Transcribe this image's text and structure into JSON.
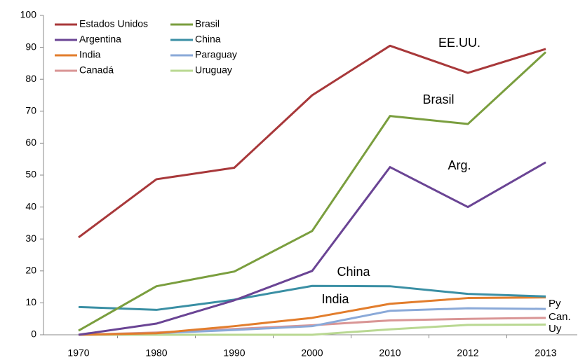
{
  "chart_data": {
    "type": "line",
    "categories": [
      "1970",
      "1980",
      "1990",
      "2000",
      "2010",
      "2012",
      "2013"
    ],
    "series": [
      {
        "name": "Estados Unidos",
        "color": "#a8383a",
        "values": [
          30.5,
          48.7,
          52.3,
          75,
          90.5,
          82,
          89.5
        ]
      },
      {
        "name": "Brasil",
        "color": "#7a9e3e",
        "values": [
          1.3,
          15.2,
          19.8,
          32.5,
          68.5,
          66,
          88.5
        ]
      },
      {
        "name": "Argentina",
        "color": "#6a4494",
        "values": [
          0,
          3.5,
          10.8,
          20,
          52.5,
          40,
          54
        ]
      },
      {
        "name": "China",
        "color": "#3a8fa4",
        "values": [
          8.7,
          7.8,
          11,
          15.3,
          15.2,
          12.8,
          12
        ]
      },
      {
        "name": "India",
        "color": "#e27d2c",
        "values": [
          0,
          0.5,
          2.7,
          5.3,
          9.7,
          11.5,
          11.7
        ]
      },
      {
        "name": "Paraguay",
        "color": "#8aa9d8",
        "values": [
          0,
          0.5,
          1.5,
          2.7,
          7.5,
          8.3,
          8.1
        ]
      },
      {
        "name": "Canadá",
        "color": "#d99595",
        "values": [
          0,
          0.7,
          1.8,
          3,
          4.5,
          5,
          5.3
        ]
      },
      {
        "name": "Uruguay",
        "color": "#b9d892",
        "values": [
          0,
          0,
          0,
          0,
          1.7,
          3.1,
          3.2
        ]
      }
    ],
    "annotations": [
      "EE.UU.",
      "Brasil",
      "Arg.",
      "China",
      "India",
      "Py",
      "Can.",
      "Uy"
    ],
    "ylim": [
      0,
      100
    ],
    "yticks": [
      0,
      10,
      20,
      30,
      40,
      50,
      60,
      70,
      80,
      90,
      100
    ],
    "grid": false,
    "legend": "top-left"
  }
}
